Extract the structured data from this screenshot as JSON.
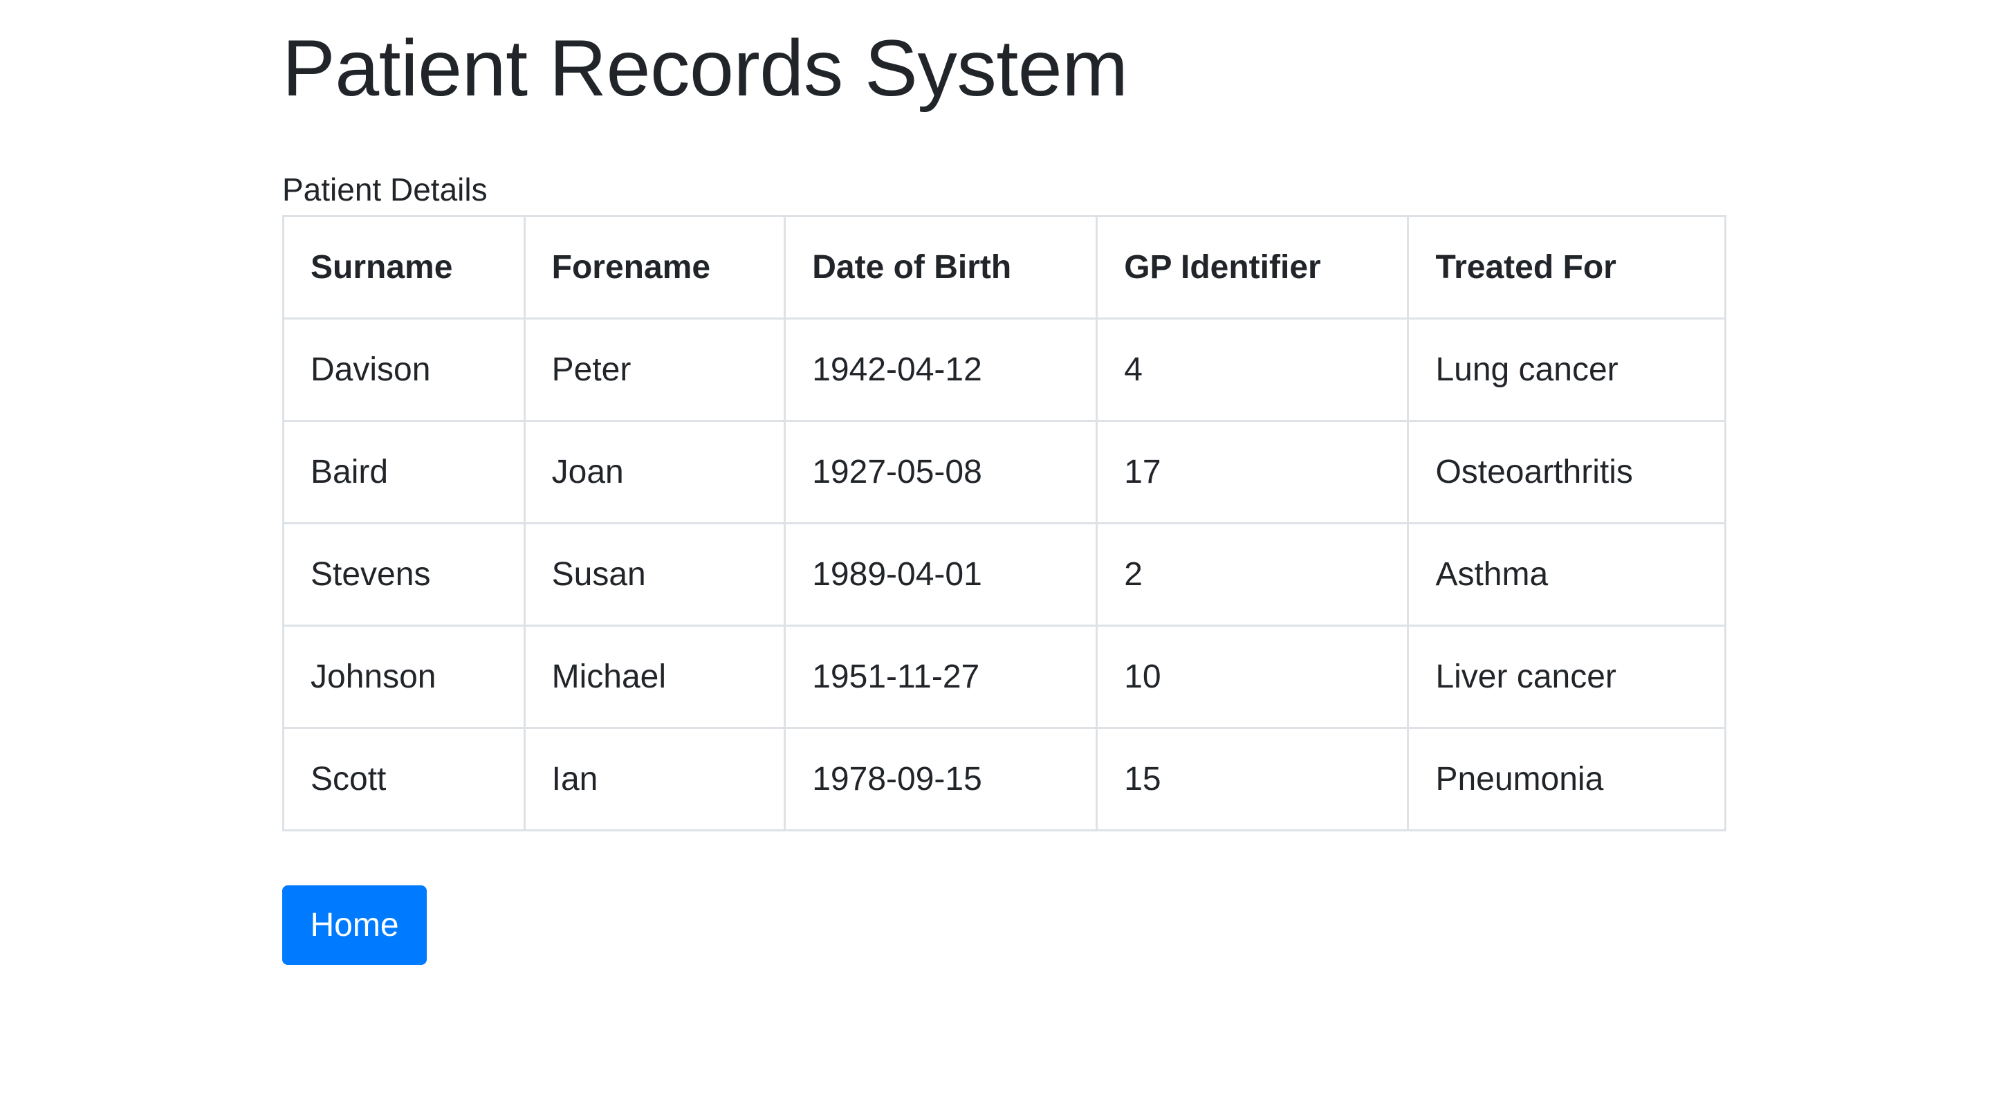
{
  "page": {
    "title": "Patient Records System",
    "table_caption": "Patient Details"
  },
  "table": {
    "columns": [
      "Surname",
      "Forename",
      "Date of Birth",
      "GP Identifier",
      "Treated For"
    ],
    "rows": [
      [
        "Davison",
        "Peter",
        "1942-04-12",
        "4",
        "Lung cancer"
      ],
      [
        "Baird",
        "Joan",
        "1927-05-08",
        "17",
        "Osteoarthritis"
      ],
      [
        "Stevens",
        "Susan",
        "1989-04-01",
        "2",
        "Asthma"
      ],
      [
        "Johnson",
        "Michael",
        "1951-11-27",
        "10",
        "Liver cancer"
      ],
      [
        "Scott",
        "Ian",
        "1978-09-15",
        "15",
        "Pneumonia"
      ]
    ]
  },
  "actions": {
    "home_label": "Home"
  },
  "colors": {
    "primary": "#007bff",
    "text": "#212529",
    "border": "#dee2e6"
  }
}
